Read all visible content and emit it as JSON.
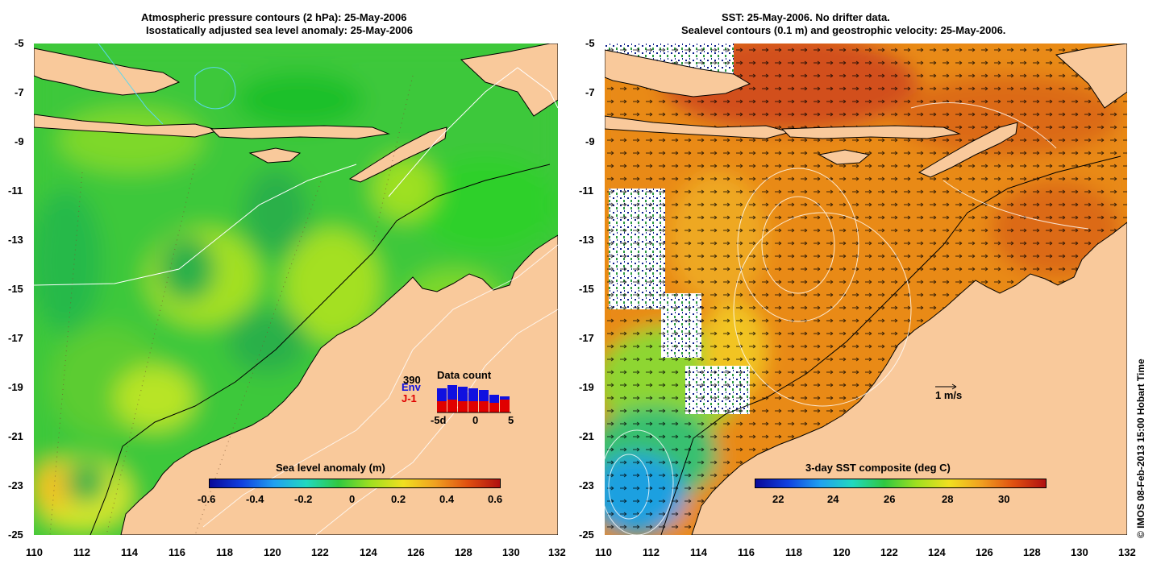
{
  "left": {
    "title_line1": "Atmospheric pressure contours (2 hPa): 25-May-2006",
    "title_line2": "Isostatically adjusted sea level anomaly: 25-May-2006",
    "colorbar": {
      "label": "Sea level anomaly (m)",
      "ticks": [
        "-0.6",
        "-0.4",
        "-0.2",
        "0",
        "0.2",
        "0.4",
        "0.6"
      ],
      "range": [
        -0.6,
        0.6
      ]
    },
    "data_count": {
      "title": "Data count",
      "max_value": "390",
      "series1": "Env",
      "series2": "J-1",
      "axis_ticks": [
        "-5d",
        "0",
        "5"
      ],
      "env_colour": "#1010e0",
      "j1_colour": "#e00000"
    }
  },
  "right": {
    "title_line1": "SST: 25-May-2006. No drifter data.",
    "title_line2": "Sealevel contours (0.1 m) and geostrophic velocity: 25-May-2006.",
    "colorbar": {
      "label": "3-day SST composite (deg C)",
      "ticks": [
        "22",
        "24",
        "26",
        "28",
        "30"
      ],
      "range": [
        21.2,
        31.3
      ]
    },
    "velocity_key": "1 m/s"
  },
  "axes": {
    "lat_ticks": [
      "-5",
      "-7",
      "-9",
      "-11",
      "-13",
      "-15",
      "-17",
      "-19",
      "-21",
      "-23",
      "-25"
    ],
    "lon_ticks": [
      "110",
      "112",
      "114",
      "116",
      "118",
      "120",
      "122",
      "124",
      "126",
      "128",
      "130",
      "132"
    ]
  },
  "credit": "© IMOS 08-Feb-2013 15:00 Hobart Time",
  "colours": {
    "land": "#f9c99b",
    "ocean_left": "#3ec83a",
    "ocean_right": "#e98a18"
  }
}
